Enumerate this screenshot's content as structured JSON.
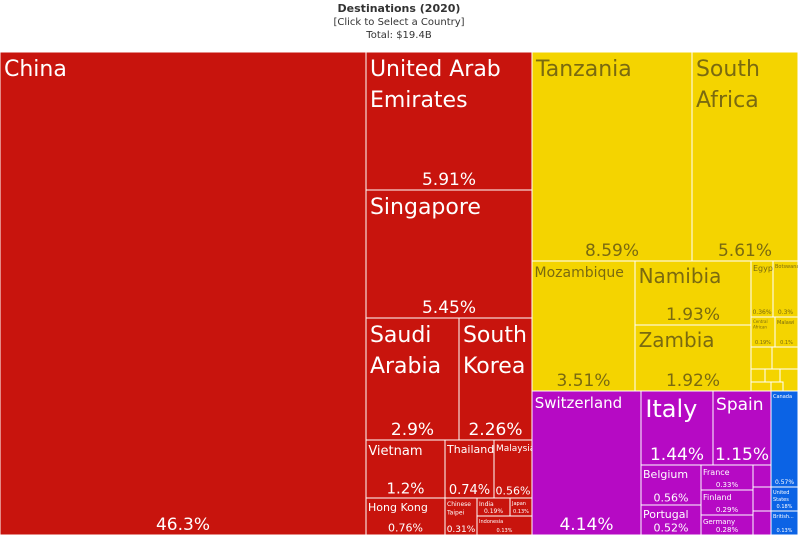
{
  "header": {
    "title": "Destinations (2020)",
    "subtitle": "[Click to Select a Country]",
    "total": "Total: $19.4B"
  },
  "colors": {
    "asia": "#c8140d",
    "africa": "#f4d400",
    "europe": "#b60ac4",
    "americas": "#0b63e5"
  },
  "chart_data": {
    "type": "treemap",
    "title": "Destinations (2020)",
    "total": "$19.4B",
    "cells": [
      {
        "name": "China",
        "pct": "46.3%",
        "region": "asia"
      },
      {
        "name": "United Arab Emirates",
        "pct": "5.91%",
        "region": "asia"
      },
      {
        "name": "Singapore",
        "pct": "5.45%",
        "region": "asia"
      },
      {
        "name": "Saudi Arabia",
        "pct": "2.9%",
        "region": "asia"
      },
      {
        "name": "South Korea",
        "pct": "2.26%",
        "region": "asia"
      },
      {
        "name": "Vietnam",
        "pct": "1.2%",
        "region": "asia"
      },
      {
        "name": "Thailand",
        "pct": "0.74%",
        "region": "asia"
      },
      {
        "name": "Malaysia",
        "pct": "0.56%",
        "region": "asia"
      },
      {
        "name": "Hong Kong",
        "pct": "0.76%",
        "region": "asia"
      },
      {
        "name": "Chinese Taipei",
        "pct": "0.31%",
        "region": "asia"
      },
      {
        "name": "India",
        "pct": "0.19%",
        "region": "asia"
      },
      {
        "name": "Japan",
        "pct": "0.13%",
        "region": "asia"
      },
      {
        "name": "Indonesia",
        "pct": "0.13%",
        "region": "asia"
      },
      {
        "name": "Tanzania",
        "pct": "8.59%",
        "region": "africa"
      },
      {
        "name": "South Africa",
        "pct": "5.61%",
        "region": "africa"
      },
      {
        "name": "Mozambique",
        "pct": "3.51%",
        "region": "africa"
      },
      {
        "name": "Namibia",
        "pct": "1.93%",
        "region": "africa"
      },
      {
        "name": "Zambia",
        "pct": "1.92%",
        "region": "africa"
      },
      {
        "name": "Egypt",
        "pct": "0.36%",
        "region": "africa"
      },
      {
        "name": "Botswana",
        "pct": "0.3%",
        "region": "africa"
      },
      {
        "name": "Central African Republic",
        "pct": "0.19%",
        "region": "africa"
      },
      {
        "name": "Malawi",
        "pct": "0.1%",
        "region": "africa"
      },
      {
        "name": "Switzerland",
        "pct": "4.14%",
        "region": "europe"
      },
      {
        "name": "Italy",
        "pct": "1.44%",
        "region": "europe"
      },
      {
        "name": "Spain",
        "pct": "1.15%",
        "region": "europe"
      },
      {
        "name": "Belgium",
        "pct": "0.56%",
        "region": "europe"
      },
      {
        "name": "France",
        "pct": "0.33%",
        "region": "europe"
      },
      {
        "name": "Finland",
        "pct": "0.29%",
        "region": "europe"
      },
      {
        "name": "Portugal",
        "pct": "0.52%",
        "region": "europe"
      },
      {
        "name": "Germany",
        "pct": "0.28%",
        "region": "europe"
      },
      {
        "name": "Canada",
        "pct": "0.57%",
        "region": "americas"
      },
      {
        "name": "United States",
        "pct": "0.18%",
        "region": "americas"
      },
      {
        "name": "British...",
        "pct": "0.13%",
        "region": "americas"
      }
    ]
  }
}
